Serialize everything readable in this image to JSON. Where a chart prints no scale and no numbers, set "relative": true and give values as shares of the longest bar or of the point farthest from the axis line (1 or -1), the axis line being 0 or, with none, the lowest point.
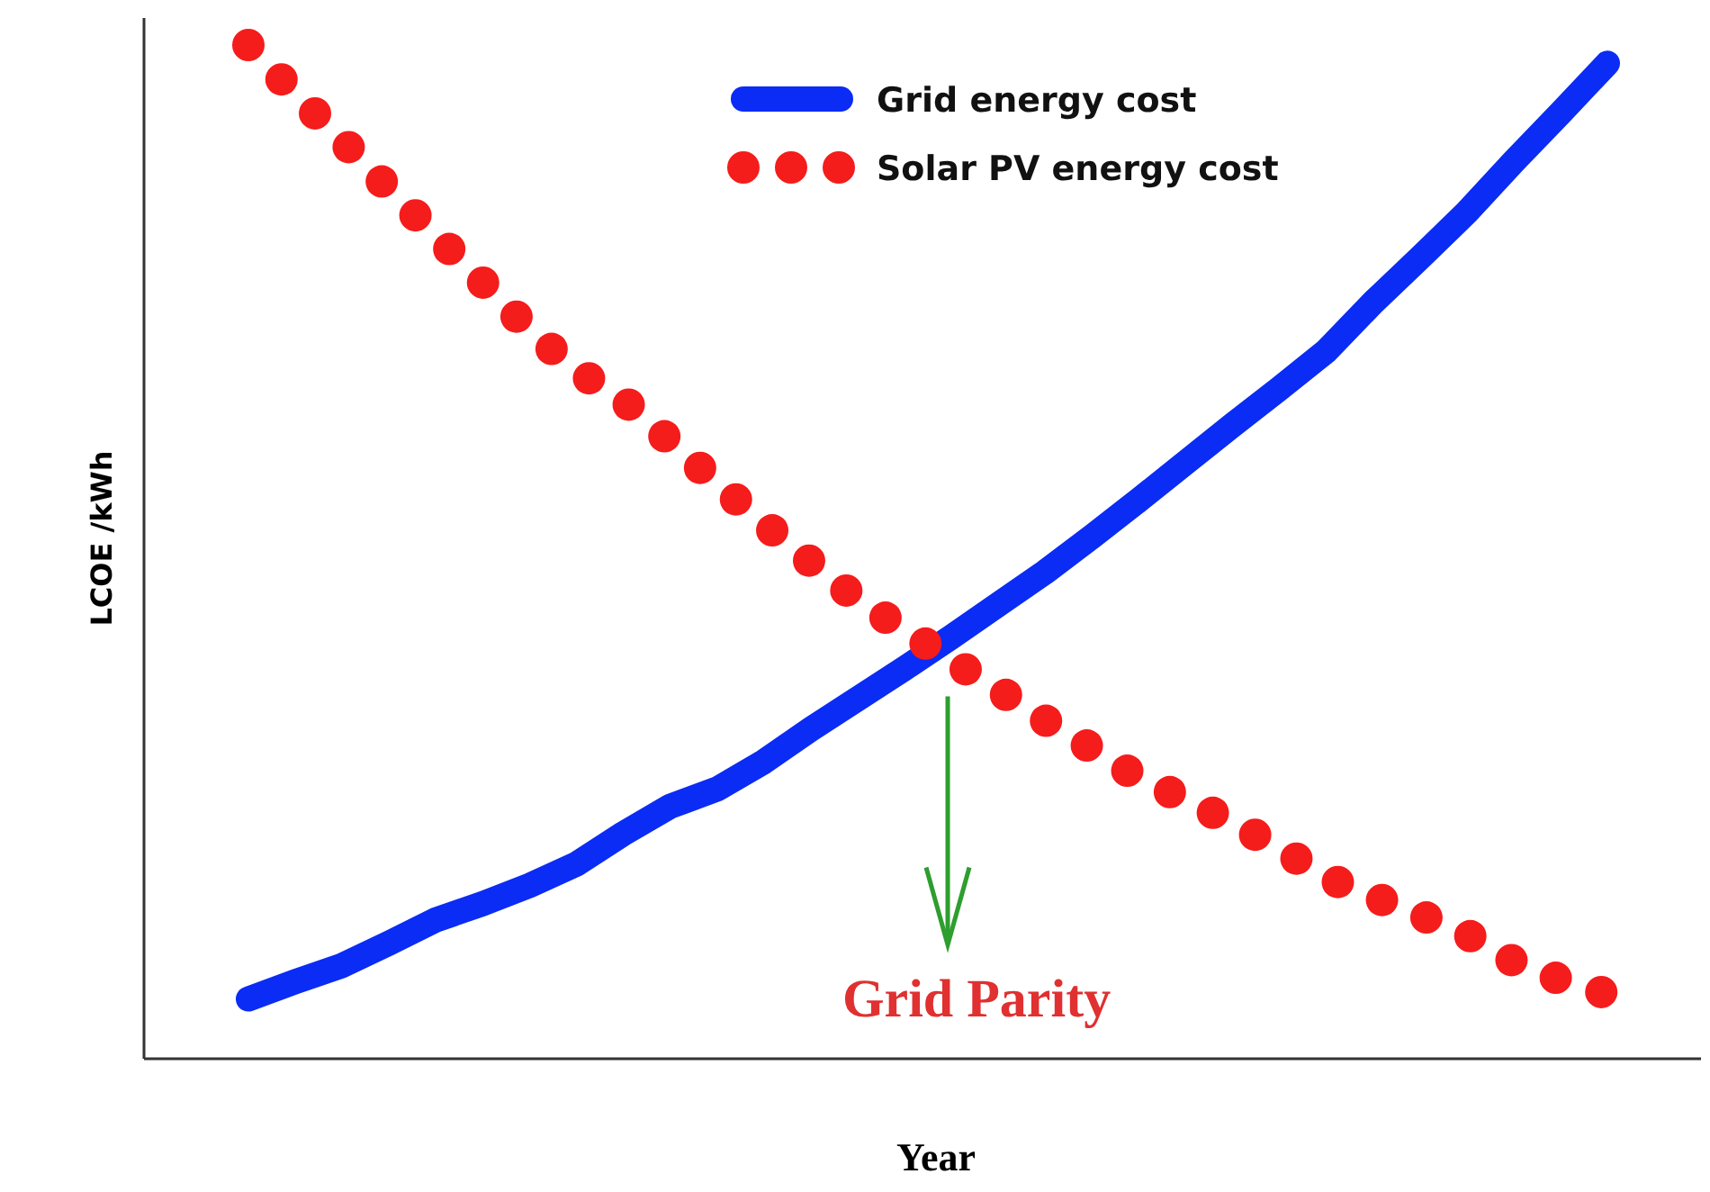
{
  "chart_data": {
    "type": "line",
    "relative": true,
    "xlabel": "Year",
    "ylabel": "LCOE /kWh",
    "legend": "top",
    "annotations": [
      "Grid Parity"
    ],
    "categories": [
      null,
      null,
      null,
      null,
      null,
      null,
      null,
      null,
      null,
      null,
      null,
      null,
      null,
      null,
      null,
      null,
      null,
      null,
      null,
      null,
      null,
      null,
      null,
      null,
      null,
      null,
      null,
      null,
      null,
      null
    ],
    "series": [
      {
        "name": "Grid energy cost",
        "color": "#0a2cf5",
        "line_style": "solid",
        "values": [
          0.059,
          0.076,
          0.092,
          0.114,
          0.137,
          0.153,
          0.171,
          0.192,
          0.222,
          0.249,
          0.266,
          0.293,
          0.325,
          0.355,
          0.385,
          0.416,
          0.448,
          0.48,
          0.515,
          0.551,
          0.588,
          0.625,
          0.661,
          0.698,
          0.746,
          0.79,
          0.835,
          0.885,
          0.933,
          0.982
        ]
      },
      {
        "name": "Solar PV energy cost",
        "color": "#f51c1c",
        "line_style": "dotted",
        "values": [
          1,
          0.952,
          0.906,
          0.858,
          0.812,
          0.766,
          0.719,
          0.679,
          0.65,
          0.609,
          0.568,
          0.528,
          0.49,
          0.453,
          0.423,
          0.393,
          0.364,
          0.334,
          0.306,
          0.277,
          0.256,
          0.233,
          0.208,
          0.179,
          0.16,
          0.142,
          0.123,
          0.096,
          0.078,
          0.064
        ]
      }
    ]
  }
}
